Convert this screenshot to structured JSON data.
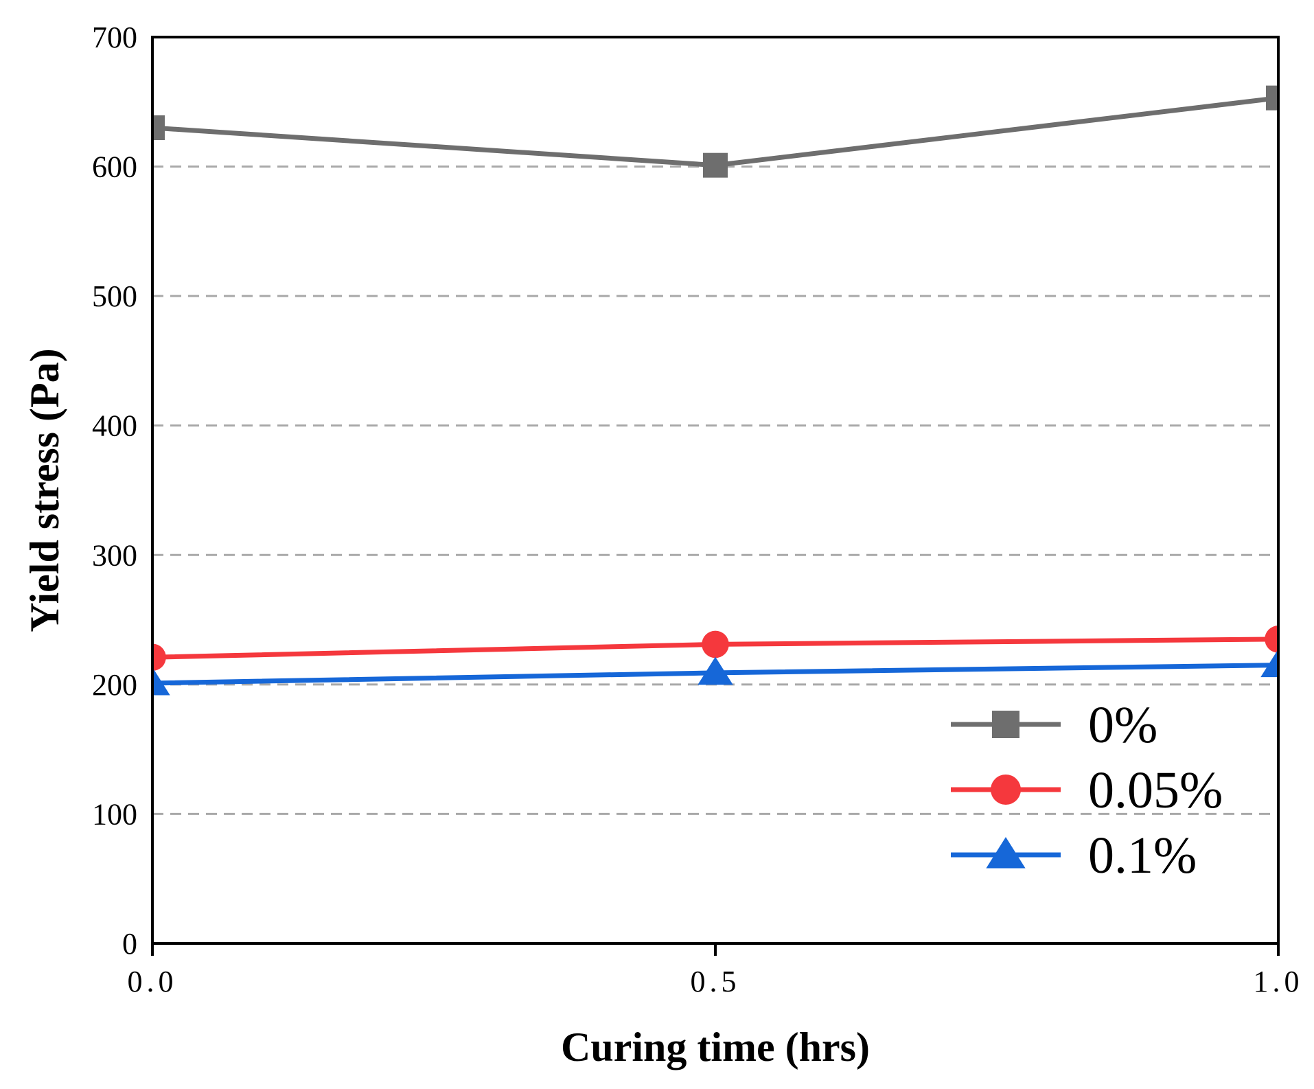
{
  "chart_data": {
    "type": "line",
    "xlabel": "Curing time (hrs)",
    "ylabel": "Yield stress (Pa)",
    "x": [
      0.0,
      0.5,
      1.0
    ],
    "xlim": [
      0.0,
      1.0
    ],
    "ylim": [
      0,
      700
    ],
    "x_ticks": [
      0.0,
      0.5,
      1.0
    ],
    "x_tick_labels": [
      "0.0",
      "0.5",
      "1.0"
    ],
    "y_ticks": [
      0,
      100,
      200,
      300,
      400,
      500,
      600,
      700
    ],
    "y_tick_labels": [
      "0",
      "100",
      "200",
      "300",
      "400",
      "500",
      "600",
      "700"
    ],
    "grid": "horizontal dashed",
    "legend_position": "bottom-right",
    "series": [
      {
        "name": "0%",
        "values": [
          630,
          601,
          653
        ],
        "color": "#6e6e6e",
        "marker": "square"
      },
      {
        "name": "0.05%",
        "values": [
          221,
          231,
          235
        ],
        "color": "#f5383d",
        "marker": "circle"
      },
      {
        "name": "0.1%",
        "values": [
          201,
          209,
          215
        ],
        "color": "#1667d8",
        "marker": "triangle"
      }
    ]
  }
}
